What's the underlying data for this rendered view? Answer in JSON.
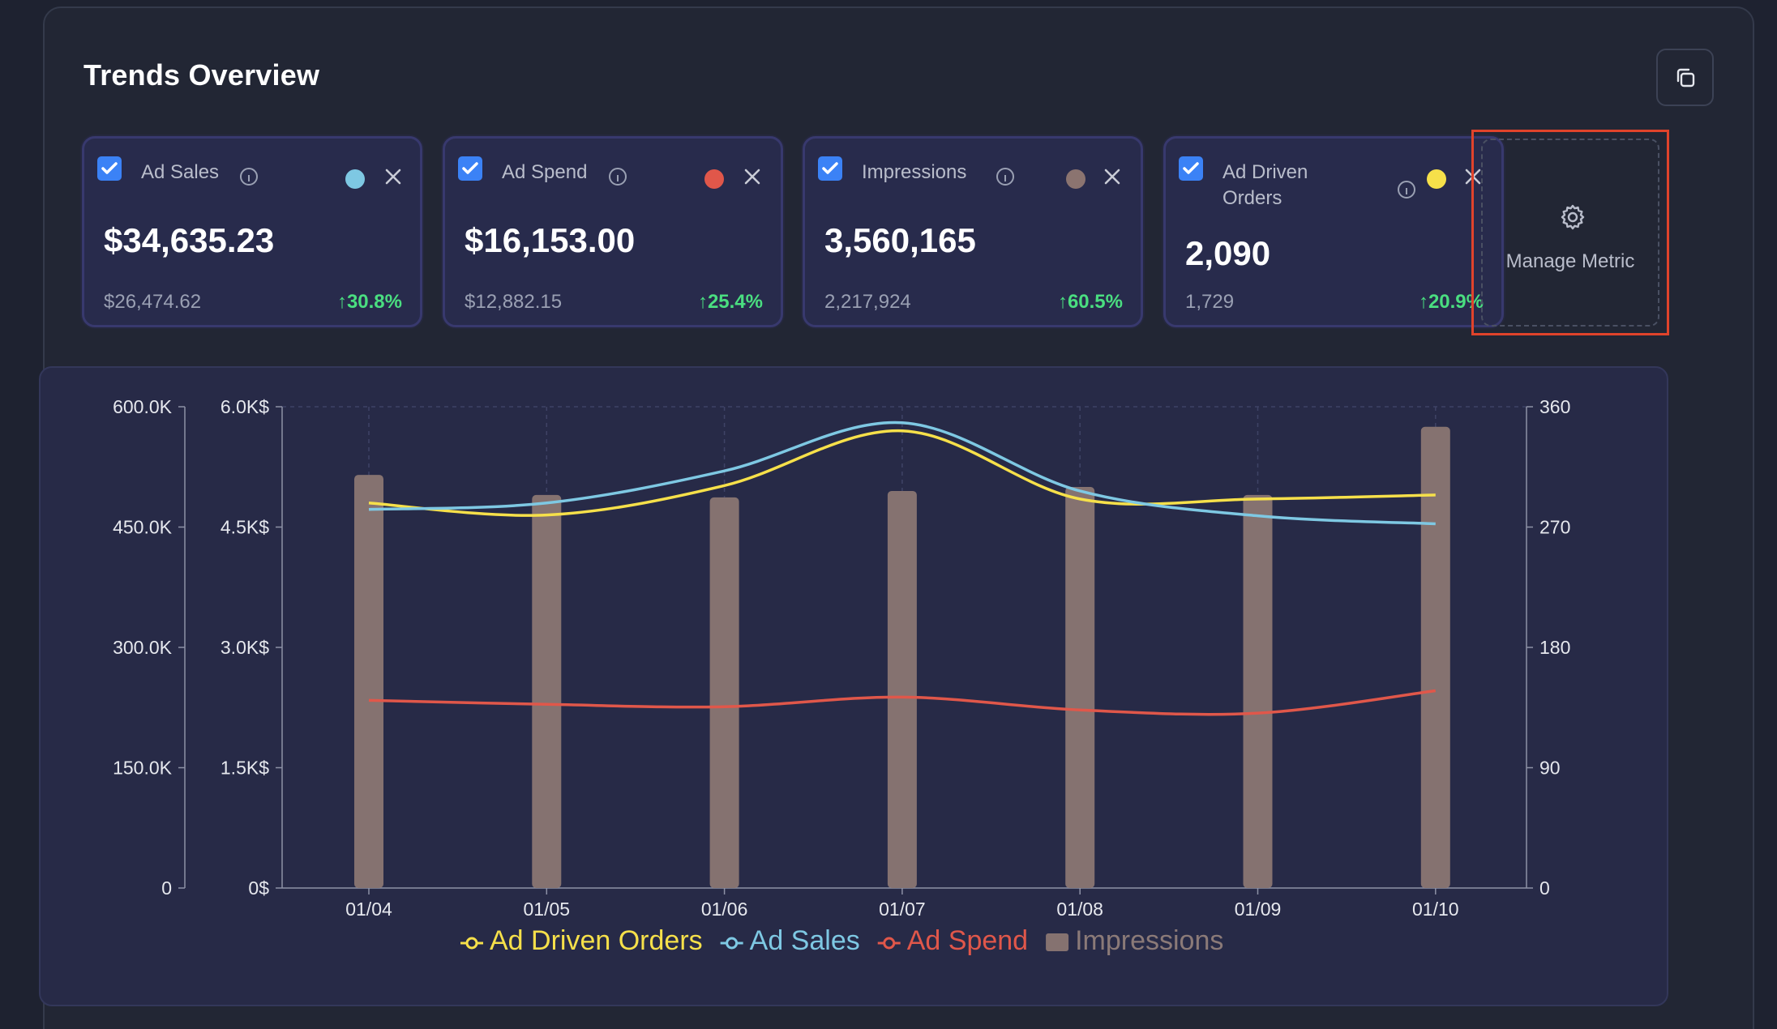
{
  "header": {
    "title": "Trends Overview"
  },
  "metrics": [
    {
      "label": "Ad Sales",
      "value": "$34,635.23",
      "previous": "$26,474.62",
      "change": "30.8%",
      "color": "#7ec8e3"
    },
    {
      "label": "Ad Spend",
      "value": "$16,153.00",
      "previous": "$12,882.15",
      "change": "25.4%",
      "color": "#e0574a"
    },
    {
      "label": "Impressions",
      "value": "3,560,165",
      "previous": "2,217,924",
      "change": "60.5%",
      "color": "#8b7470"
    },
    {
      "label_line1": "Ad Driven",
      "label_line2": "Orders",
      "value": "2,090",
      "previous": "1,729",
      "change": "20.9%",
      "color": "#f6e04a"
    }
  ],
  "manage_metric": {
    "label": "Manage Metric"
  },
  "chart_data": {
    "type": "bar+line",
    "categories": [
      "01/04",
      "01/05",
      "01/06",
      "01/07",
      "01/08",
      "01/09",
      "01/10"
    ],
    "axes": {
      "left_impressions": {
        "ticks": [
          "0",
          "150.0K",
          "300.0K",
          "450.0K",
          "600.0K"
        ],
        "range": [
          0,
          600000
        ]
      },
      "left_currency": {
        "ticks": [
          "0$",
          "1.5K$",
          "3.0K$",
          "4.5K$",
          "6.0K$"
        ],
        "range": [
          0,
          6000
        ]
      },
      "right_orders": {
        "ticks": [
          "0",
          "90",
          "180",
          "270",
          "360"
        ],
        "range": [
          0,
          360
        ]
      }
    },
    "series": [
      {
        "name": "Ad Driven Orders",
        "type": "line",
        "axis": "right_orders",
        "color": "#f6e04a",
        "values": [
          288,
          279,
          301,
          342,
          291,
          291,
          294
        ]
      },
      {
        "name": "Ad Sales",
        "type": "line",
        "axis": "left_currency",
        "color": "#7ec8e3",
        "values": [
          4720,
          4800,
          5200,
          5800,
          4950,
          4640,
          4540
        ]
      },
      {
        "name": "Ad Spend",
        "type": "line",
        "axis": "left_currency",
        "color": "#e0574a",
        "values": [
          2340,
          2290,
          2260,
          2380,
          2220,
          2180,
          2460
        ]
      },
      {
        "name": "Impressions",
        "type": "bar",
        "axis": "left_impressions",
        "color": "#857270",
        "values": [
          515000,
          490000,
          487000,
          495000,
          500000,
          490000,
          575000
        ]
      }
    ],
    "legend": "bottom-center",
    "grid": "vertical-dashed"
  }
}
